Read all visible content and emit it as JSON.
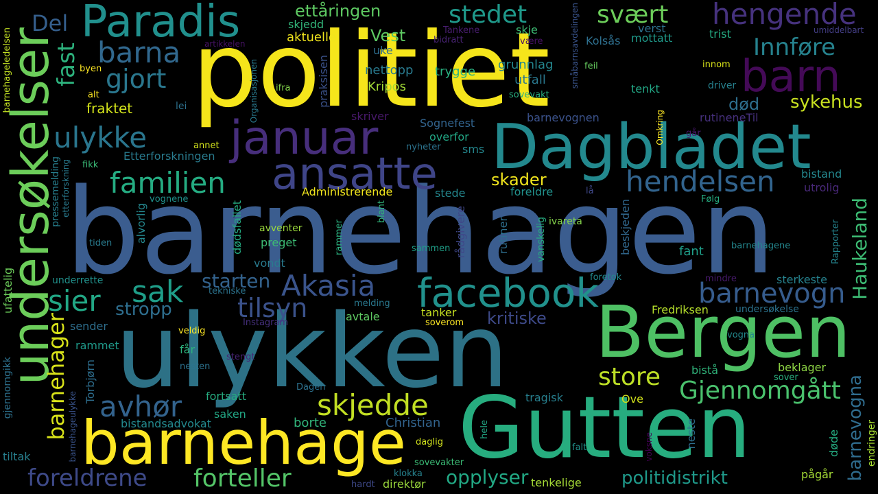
{
  "words": [
    {
      "text": "barnehagen",
      "color": "#3b5d8f"
    },
    {
      "text": "politiet",
      "color": "#f5e51b"
    },
    {
      "text": "ulykken",
      "color": "#2d7186"
    },
    {
      "text": "Gutten",
      "color": "#27ad7f"
    },
    {
      "text": "Bergen",
      "color": "#4ec064"
    },
    {
      "text": "Dagbladet",
      "color": "#23898e"
    },
    {
      "text": "barnehage",
      "color": "#fde724"
    },
    {
      "text": "undersøkelser",
      "color": "#6ccd5a"
    },
    {
      "text": "januar",
      "color": "#472e7c"
    },
    {
      "text": "ansatte",
      "color": "#3f4588"
    },
    {
      "text": "facebook",
      "color": "#21918c"
    },
    {
      "text": "Paradis",
      "color": "#21908d"
    },
    {
      "text": "barn",
      "color": "#440a57"
    },
    {
      "text": "hengende",
      "color": "#46327e"
    },
    {
      "text": "Akasia",
      "color": "#3a548c"
    },
    {
      "text": "skjedde",
      "color": "#c2df23"
    },
    {
      "text": "familien",
      "color": "#25ac82"
    },
    {
      "text": "hendelsen",
      "color": "#32648e"
    },
    {
      "text": "barnevogn",
      "color": "#365c8d"
    },
    {
      "text": "Gjennomgått",
      "color": "#4ac16d"
    },
    {
      "text": "forteller",
      "color": "#54c568"
    },
    {
      "text": "foreldrene",
      "color": "#3e4a89"
    },
    {
      "text": "sak",
      "color": "#1f9e89"
    },
    {
      "text": "barna",
      "color": "#31688e"
    },
    {
      "text": "gjort",
      "color": "#2a778e"
    },
    {
      "text": "ulykke",
      "color": "#2a768e"
    },
    {
      "text": "sier",
      "color": "#22a785"
    },
    {
      "text": "avhør",
      "color": "#33638d"
    },
    {
      "text": "store",
      "color": "#bddf26"
    },
    {
      "text": "tilsyn",
      "color": "#3b528b"
    },
    {
      "text": "Innføre",
      "color": "#26828e"
    },
    {
      "text": "stedet",
      "color": "#1f998a"
    },
    {
      "text": "svært",
      "color": "#6ccd5a"
    },
    {
      "text": "Del",
      "color": "#355f8d"
    },
    {
      "text": "fast",
      "color": "#2db27d"
    },
    {
      "text": "barnehager",
      "color": "#d8e219"
    },
    {
      "text": "opplyser",
      "color": "#22a884"
    },
    {
      "text": "politidistrikt",
      "color": "#1f998a"
    },
    {
      "text": "barnevogna",
      "color": "#2f6c8e"
    },
    {
      "text": "Haukeland",
      "color": "#3dbc74"
    },
    {
      "text": "starten",
      "color": "#33628d"
    },
    {
      "text": "stropp",
      "color": "#2e6e8e"
    },
    {
      "text": "kritiske",
      "color": "#3e4a89"
    },
    {
      "text": "skader",
      "color": "#f1e51d"
    },
    {
      "text": "ettåringen",
      "color": "#5ec962"
    },
    {
      "text": "Vest",
      "color": "#5ec962"
    },
    {
      "text": "aktuelle",
      "color": "#f1e51d"
    },
    {
      "text": "fraktet",
      "color": "#d2e21b"
    },
    {
      "text": "død",
      "color": "#2e6f8e"
    },
    {
      "text": "sykehus",
      "color": "#c8e020"
    },
    {
      "text": "Kripos",
      "color": "#a2da37"
    },
    {
      "text": "trygge",
      "color": "#29af7f"
    },
    {
      "text": "nettopp",
      "color": "#297a8e"
    },
    {
      "text": "grunnlag",
      "color": "#24868e"
    },
    {
      "text": "utfall",
      "color": "#2a788e"
    },
    {
      "text": "tenkt",
      "color": "#22a785"
    },
    {
      "text": "Kolsås",
      "color": "#2e6f8e"
    },
    {
      "text": "mottatt",
      "color": "#1f9a8a"
    },
    {
      "text": "verst",
      "color": "#2d718e"
    },
    {
      "text": "trist",
      "color": "#25ab82"
    },
    {
      "text": "umiddelbart",
      "color": "#433e85"
    },
    {
      "text": "skjedd",
      "color": "#32b67a"
    },
    {
      "text": "skje",
      "color": "#3dbc74"
    },
    {
      "text": "uke",
      "color": "#2e6e8e"
    },
    {
      "text": "Tankene",
      "color": "#481d6f"
    },
    {
      "text": "bidratt",
      "color": "#482374"
    },
    {
      "text": "være",
      "color": "#471164"
    },
    {
      "text": "artikkelen",
      "color": "#471365"
    },
    {
      "text": "byen",
      "color": "#fde724"
    },
    {
      "text": "alt",
      "color": "#fde724"
    },
    {
      "text": "lei",
      "color": "#2d718e"
    },
    {
      "text": "annet",
      "color": "#d0e11c"
    },
    {
      "text": "fikk",
      "color": "#3aba76"
    },
    {
      "text": "ifra",
      "color": "#84d44b"
    },
    {
      "text": "feil",
      "color": "#65cb5e"
    },
    {
      "text": "innom",
      "color": "#d8e219"
    },
    {
      "text": "driver",
      "color": "#26818e"
    },
    {
      "text": "sovevakt",
      "color": "#2ab07f"
    },
    {
      "text": "Sognefest",
      "color": "#32648e"
    },
    {
      "text": "overfor",
      "color": "#22a785"
    },
    {
      "text": "sms",
      "color": "#24878e"
    },
    {
      "text": "nyheter",
      "color": "#2c738e"
    },
    {
      "text": "skriver",
      "color": "#48196b"
    },
    {
      "text": "barnevognen",
      "color": "#3b528b"
    },
    {
      "text": "rutineneTil",
      "color": "#46307e"
    },
    {
      "text": "går",
      "color": "#48186a"
    },
    {
      "text": "Etterforskningen",
      "color": "#297b8e"
    },
    {
      "text": "Administrerende",
      "color": "#f1e51d"
    },
    {
      "text": "stede",
      "color": "#24878e"
    },
    {
      "text": "foreldre",
      "color": "#21918c"
    },
    {
      "text": "lå",
      "color": "#3f4889"
    },
    {
      "text": "Følg",
      "color": "#26ad81"
    },
    {
      "text": "bistand",
      "color": "#24878e"
    },
    {
      "text": "utrolig",
      "color": "#482878"
    },
    {
      "text": "vognene",
      "color": "#21918c"
    },
    {
      "text": "avventer",
      "color": "#9bd93c"
    },
    {
      "text": "preget",
      "color": "#3dbc74"
    },
    {
      "text": "vondt",
      "color": "#297a8e"
    },
    {
      "text": "ivareta",
      "color": "#84d44b"
    },
    {
      "text": "sammen",
      "color": "#1f9f88"
    },
    {
      "text": "fant",
      "color": "#1f9e89"
    },
    {
      "text": "barnehagene",
      "color": "#24878e"
    },
    {
      "text": "tiden",
      "color": "#297b8e"
    },
    {
      "text": "underrette",
      "color": "#21918c"
    },
    {
      "text": "tekniske",
      "color": "#2c738e"
    },
    {
      "text": "melding",
      "color": "#2a788e"
    },
    {
      "text": "tanker",
      "color": "#c5e021"
    },
    {
      "text": "soverom",
      "color": "#fde724"
    },
    {
      "text": "avtale",
      "color": "#5ec962"
    },
    {
      "text": "Instagram",
      "color": "#46307e"
    },
    {
      "text": "foretok",
      "color": "#23888e"
    },
    {
      "text": "mindre",
      "color": "#481a6c"
    },
    {
      "text": "sterkeste",
      "color": "#26828e"
    },
    {
      "text": "Fredriksen",
      "color": "#b5de2b"
    },
    {
      "text": "undersøkelse",
      "color": "#2c738e"
    },
    {
      "text": "sender",
      "color": "#2e6f8e"
    },
    {
      "text": "rammet",
      "color": "#1f9a8a"
    },
    {
      "text": "veldig",
      "color": "#fde724"
    },
    {
      "text": "får",
      "color": "#2db27d"
    },
    {
      "text": "stengt",
      "color": "#482475"
    },
    {
      "text": "nesten",
      "color": "#2c728e"
    },
    {
      "text": "vogna",
      "color": "#23898e"
    },
    {
      "text": "beklager",
      "color": "#8ed645"
    },
    {
      "text": "bistå",
      "color": "#30b47b"
    },
    {
      "text": "sover",
      "color": "#2ab07f"
    },
    {
      "text": "Dagen",
      "color": "#2d718e"
    },
    {
      "text": "fortsatt",
      "color": "#26ad81"
    },
    {
      "text": "saken",
      "color": "#22a785"
    },
    {
      "text": "borte",
      "color": "#31b57b"
    },
    {
      "text": "Christian",
      "color": "#32648e"
    },
    {
      "text": "tragisk",
      "color": "#277f8e"
    },
    {
      "text": "Ove",
      "color": "#d2e21b"
    },
    {
      "text": "bistandsadvokat",
      "color": "#23898e"
    },
    {
      "text": "daglig",
      "color": "#d0e11c"
    },
    {
      "text": "falt",
      "color": "#21918c"
    },
    {
      "text": "sovevakter",
      "color": "#3bbb75"
    },
    {
      "text": "klokka",
      "color": "#26828e"
    },
    {
      "text": "direktør",
      "color": "#9bd93c"
    },
    {
      "text": "tenkelige",
      "color": "#a5db36"
    },
    {
      "text": "hardt",
      "color": "#3e4989"
    },
    {
      "text": "pågår",
      "color": "#a5db36"
    },
    {
      "text": "tiltak",
      "color": "#277f8e"
    },
    {
      "text": "barnehageledelsen",
      "color": "#c2df23"
    },
    {
      "text": "pressemelding",
      "color": "#277f8e"
    },
    {
      "text": "etterforskning",
      "color": "#297a8e"
    },
    {
      "text": "alvorlig",
      "color": "#24878e"
    },
    {
      "text": "dødsfallet",
      "color": "#25ac82"
    },
    {
      "text": "ufattelig",
      "color": "#6ccd5a"
    },
    {
      "text": "gjennomgikk",
      "color": "#2d718e"
    },
    {
      "text": "barnehageulykke",
      "color": "#3a548c"
    },
    {
      "text": "Torbjørn",
      "color": "#2e6e8e"
    },
    {
      "text": "Organisasjonen",
      "color": "#297a8e"
    },
    {
      "text": "praksisen",
      "color": "#3b528b"
    },
    {
      "text": "blant",
      "color": "#31b57b"
    },
    {
      "text": "rammer",
      "color": "#2ab07f"
    },
    {
      "text": "rådgivere",
      "color": "#3f4788"
    },
    {
      "text": "rutiner",
      "color": "#2e6e8e"
    },
    {
      "text": "vanskelig",
      "color": "#27ad81"
    },
    {
      "text": "småbarnsavdelingen",
      "color": "#3a548c"
    },
    {
      "text": "Omkring",
      "color": "#fde724"
    },
    {
      "text": "beskjeden",
      "color": "#31688e"
    },
    {
      "text": "Rapporter",
      "color": "#25848e"
    },
    {
      "text": "hele",
      "color": "#22a785"
    },
    {
      "text": "neste",
      "color": "#2e6f8e"
    },
    {
      "text": "voksne",
      "color": "#440154"
    },
    {
      "text": "døde",
      "color": "#25ac82"
    },
    {
      "text": "endringer",
      "color": "#ace332"
    }
  ]
}
